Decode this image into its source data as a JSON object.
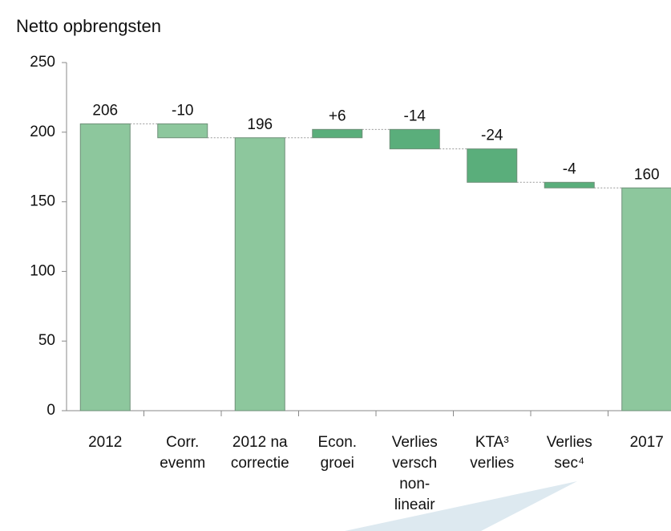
{
  "chart_data": {
    "type": "waterfall",
    "title": "Netto opbrengsten",
    "categories": [
      [
        "2012"
      ],
      [
        "Corr.",
        "evenm"
      ],
      [
        "2012 na",
        "correctie"
      ],
      [
        "Econ.",
        "groei"
      ],
      [
        "Verlies",
        "versch",
        "non-",
        "lineair"
      ],
      [
        "KTA³",
        "verlies"
      ],
      [
        "Verlies",
        "sec⁴"
      ],
      [
        "2017"
      ]
    ],
    "values": [
      206,
      -10,
      196,
      6,
      -14,
      -24,
      -4,
      160
    ],
    "value_labels": [
      "206",
      "-10",
      "196",
      "+6",
      "-14",
      "-24",
      "-4",
      "160"
    ],
    "kinds": [
      "total",
      "delta",
      "total",
      "delta",
      "delta",
      "delta",
      "delta",
      "total"
    ],
    "colors": [
      "#8dc79d",
      "#8dc79d",
      "#8dc79d",
      "#5aae7b",
      "#5aae7b",
      "#5aae7b",
      "#5aae7b",
      "#8dc79d"
    ],
    "ylim": [
      0,
      250
    ],
    "yticks": [
      0,
      50,
      100,
      150,
      200,
      250
    ]
  }
}
